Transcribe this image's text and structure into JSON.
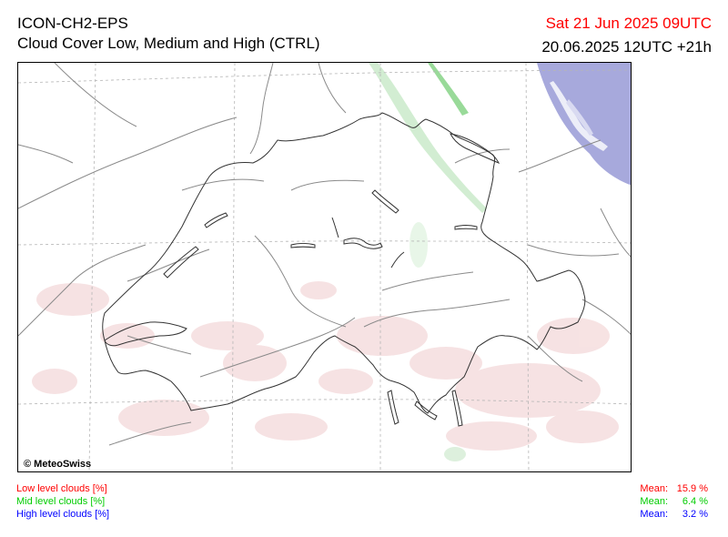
{
  "header": {
    "model": "ICON-CH2-EPS",
    "product": "Cloud Cover Low, Medium and High (CTRL)",
    "valid_time": "Sat 21 Jun 2025 09UTC",
    "run_info": "20.06.2025 12UTC +21h"
  },
  "map": {
    "copyright": "© MeteoSwiss"
  },
  "legend": {
    "low": {
      "label": "Low level clouds [%]",
      "mean_label": "Mean:",
      "mean_value": "15.9 %",
      "color": "#ff0000"
    },
    "mid": {
      "label": "Mid level clouds [%]",
      "mean_label": "Mean:",
      "mean_value": "6.4 %",
      "color": "#00cc00"
    },
    "high": {
      "label": "High level clouds [%]",
      "mean_label": "Mean:",
      "mean_value": "3.2 %",
      "color": "#0000ff"
    }
  }
}
